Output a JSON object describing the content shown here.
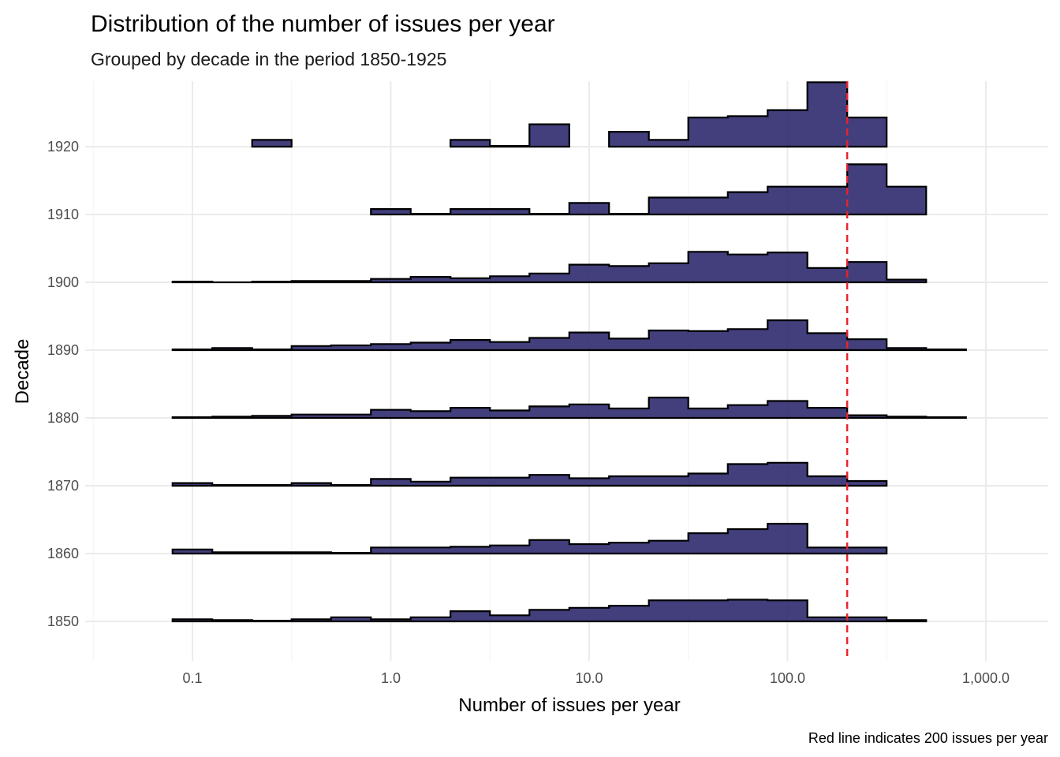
{
  "chart_data": {
    "type": "ridgeline-histogram",
    "title": "Distribution of the number of issues per year",
    "subtitle": "Grouped by decade in the period 1850-1925",
    "xlabel": "Number of issues per year",
    "ylabel": "Decade",
    "caption": "Red line indicates 200 issues per year",
    "x_scale": "log10",
    "xlim": [
      0.0316,
      2000
    ],
    "x_ticks": [
      0.1,
      1,
      10,
      100,
      1000
    ],
    "x_tick_labels": [
      "0.1",
      "1.0",
      "10.0",
      "100.0",
      "1,000.0"
    ],
    "y_ticks": [
      1850,
      1860,
      1870,
      1880,
      1890,
      1900,
      1910,
      1920
    ],
    "y_tick_labels": [
      "1850",
      "1860",
      "1870",
      "1880",
      "1890",
      "1900",
      "1910",
      "1920"
    ],
    "reference_line": {
      "x": 200,
      "color": "#e8232b",
      "style": "dashed"
    },
    "bin_edges": [
      0.0794,
      0.126,
      0.2,
      0.316,
      0.5,
      0.794,
      1.26,
      2.0,
      3.16,
      5.0,
      7.94,
      12.6,
      20.0,
      31.6,
      50.0,
      79.4,
      126,
      200,
      316,
      500,
      794
    ],
    "fill_color": "#2d2a6e",
    "series": [
      {
        "name": "1850",
        "heights": [
          0.3,
          0.2,
          0.1,
          0.3,
          0.6,
          0.3,
          0.6,
          1.5,
          0.9,
          1.7,
          2.0,
          2.3,
          3.1,
          3.1,
          3.2,
          3.1,
          0.6,
          0.6,
          0.2,
          null
        ]
      },
      {
        "name": "1860",
        "heights": [
          0.6,
          0.2,
          0.2,
          0.2,
          0.1,
          0.9,
          0.9,
          1.0,
          1.2,
          2.0,
          1.4,
          1.6,
          1.9,
          3.0,
          3.6,
          4.4,
          0.9,
          0.9,
          null,
          null
        ]
      },
      {
        "name": "1870",
        "heights": [
          0.4,
          0.1,
          0.1,
          0.4,
          0.1,
          1.0,
          0.6,
          1.2,
          1.2,
          1.6,
          1.1,
          1.4,
          1.4,
          1.8,
          3.2,
          3.4,
          1.4,
          0.7,
          null,
          null
        ]
      },
      {
        "name": "1880",
        "heights": [
          0.1,
          0.2,
          0.3,
          0.5,
          0.5,
          1.2,
          1.0,
          1.5,
          1.1,
          1.7,
          2.0,
          1.4,
          3.0,
          1.4,
          1.9,
          2.5,
          1.5,
          0.4,
          0.2,
          0.1
        ]
      },
      {
        "name": "1890",
        "heights": [
          0.1,
          0.3,
          0.1,
          0.6,
          0.7,
          0.9,
          1.1,
          1.5,
          1.2,
          1.8,
          2.6,
          1.7,
          2.9,
          2.8,
          3.1,
          4.4,
          2.5,
          1.6,
          0.3,
          0.1
        ]
      },
      {
        "name": "1900",
        "heights": [
          0.1,
          0.0,
          0.1,
          0.2,
          0.2,
          0.5,
          0.8,
          0.6,
          0.9,
          1.3,
          2.6,
          2.4,
          2.8,
          4.5,
          4.1,
          4.4,
          2.1,
          3.0,
          0.4,
          null
        ]
      },
      {
        "name": "1910",
        "heights": [
          null,
          null,
          null,
          null,
          null,
          0.8,
          0.1,
          0.8,
          0.8,
          0.1,
          1.7,
          0.1,
          2.5,
          2.5,
          3.3,
          4.1,
          4.1,
          7.4,
          4.1,
          null
        ]
      },
      {
        "name": "1920",
        "heights": [
          null,
          null,
          1.0,
          null,
          null,
          null,
          null,
          1.0,
          0.1,
          3.3,
          null,
          2.2,
          1.0,
          4.3,
          4.5,
          5.4,
          9.5,
          4.3,
          null,
          null
        ]
      }
    ]
  }
}
